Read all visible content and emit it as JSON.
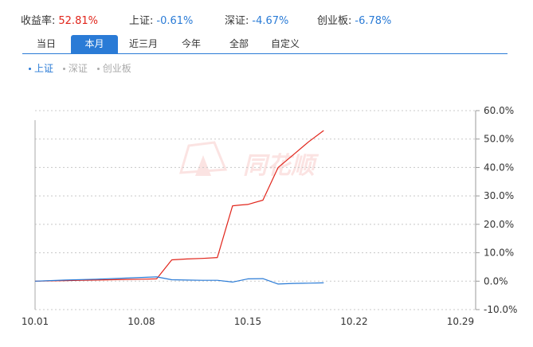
{
  "header": {
    "stats": [
      {
        "label": "收益率:",
        "value": "52.81%",
        "color": "#e1251b"
      },
      {
        "label": "上证:",
        "value": "-0.61%",
        "color": "#2a7bd6"
      },
      {
        "label": "深证:",
        "value": "-4.67%",
        "color": "#2a7bd6"
      },
      {
        "label": "创业板:",
        "value": "-6.78%",
        "color": "#2a7bd6"
      }
    ]
  },
  "tabs": [
    {
      "label": "当日",
      "active": false
    },
    {
      "label": "本月",
      "active": true
    },
    {
      "label": "近三月",
      "active": false
    },
    {
      "label": "今年",
      "active": false
    },
    {
      "label": "全部",
      "active": false
    },
    {
      "label": "自定义",
      "active": false
    }
  ],
  "legend": [
    {
      "label": "上证",
      "active": true,
      "color": "#2a7bd6"
    },
    {
      "label": "深证",
      "active": false,
      "color": "#aaaaaa"
    },
    {
      "label": "创业板",
      "active": false,
      "color": "#aaaaaa"
    }
  ],
  "watermark": "同花顺",
  "chart_data": {
    "type": "line",
    "x_ticks": [
      "10.01",
      "10.08",
      "10.15",
      "10.22",
      "10.29"
    ],
    "x_tick_days": [
      1,
      8,
      15,
      22,
      29
    ],
    "xlim": [
      1,
      30
    ],
    "y_ticks": [
      "60.0%",
      "50.0%",
      "40.0%",
      "30.0%",
      "20.0%",
      "10.0%",
      "0.0%",
      "-10.0%"
    ],
    "y_tick_values": [
      60,
      50,
      40,
      30,
      20,
      10,
      0,
      -10
    ],
    "ylim": [
      -10,
      60
    ],
    "grid": true,
    "series": [
      {
        "color": "#e1251b",
        "points": [
          [
            1,
            0
          ],
          [
            2,
            0.1
          ],
          [
            3,
            0.2
          ],
          [
            4,
            0.3
          ],
          [
            5,
            0.4
          ],
          [
            6,
            0.5
          ],
          [
            7,
            0.6
          ],
          [
            8,
            0.7
          ],
          [
            9,
            0.8
          ],
          [
            10,
            7.5
          ],
          [
            11,
            7.8
          ],
          [
            12,
            8.0
          ],
          [
            13,
            8.3
          ],
          [
            14,
            26.5
          ],
          [
            14.5,
            26.8
          ],
          [
            15,
            27.0
          ],
          [
            16,
            28.5
          ],
          [
            17,
            40.0
          ],
          [
            18,
            44.5
          ],
          [
            19,
            49.0
          ],
          [
            20,
            53.0
          ]
        ]
      },
      {
        "color": "#2a7bd6",
        "points": [
          [
            1,
            0
          ],
          [
            3,
            0.4
          ],
          [
            5,
            0.7
          ],
          [
            7,
            1.1
          ],
          [
            8,
            1.3
          ],
          [
            9,
            1.5
          ],
          [
            10,
            0.5
          ],
          [
            11,
            0.4
          ],
          [
            12,
            0.3
          ],
          [
            13,
            0.3
          ],
          [
            14,
            -0.3
          ],
          [
            15,
            0.8
          ],
          [
            16,
            0.9
          ],
          [
            17,
            -1.0
          ],
          [
            18,
            -0.8
          ],
          [
            19,
            -0.7
          ],
          [
            20,
            -0.6
          ]
        ]
      }
    ]
  }
}
